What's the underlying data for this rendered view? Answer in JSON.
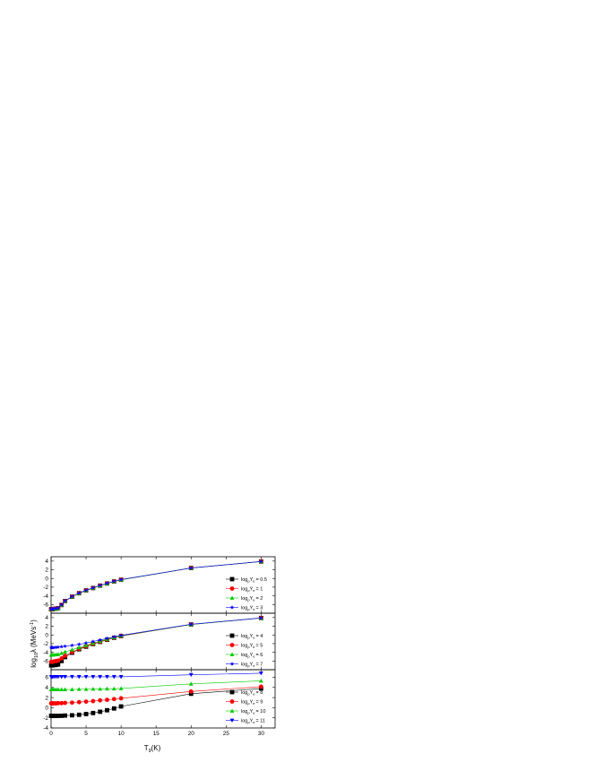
{
  "chart_data": {
    "type": "line",
    "xlabel": "T",
    "xlabel_sub": "9",
    "xlabel_unit": "(K)",
    "ylabel_prefix": "log",
    "ylabel_sub": "10",
    "ylabel_lambda": "λ",
    "ylabel_unit": "(MeVs",
    "ylabel_sup": "-1",
    "ylabel_close": ")",
    "xlim": [
      0,
      32
    ],
    "xticks": [
      "0",
      "5",
      "10",
      "15",
      "20",
      "25",
      "30"
    ],
    "legend_position": "right",
    "colors": {
      "black": "#000000",
      "red": "#ff0000",
      "green": "#00cc00",
      "blue": "#0000ff"
    },
    "x": [
      0.01,
      0.1,
      0.2,
      0.4,
      0.7,
      1,
      1.5,
      2,
      3,
      4,
      5,
      6,
      7,
      8,
      9,
      10,
      20,
      30
    ],
    "panels": [
      {
        "ylim": [
          -8,
          5
        ],
        "yticks": [
          "4",
          "2",
          "0",
          "-2",
          "-4",
          "-6"
        ],
        "series": [
          {
            "name_prefix": "log",
            "name_sub": "ρ",
            "name_mid": "Y",
            "name_sub2": "e",
            "name_suffix": "= 0.5",
            "marker": "square",
            "color": "black",
            "y": [
              -7.1,
              -7.1,
              -7.1,
              -7.0,
              -6.95,
              -6.85,
              -6.1,
              -5.2,
              -4.2,
              -3.4,
              -2.75,
              -2.2,
              -1.65,
              -1.15,
              -0.7,
              -0.3,
              2.4,
              3.9
            ]
          },
          {
            "name_prefix": "log",
            "name_sub": "ρ",
            "name_mid": "Y",
            "name_sub2": "e",
            "name_suffix": "= 1",
            "marker": "circle",
            "color": "red",
            "y": [
              -7.1,
              -7.1,
              -7.1,
              -7.0,
              -6.95,
              -6.85,
              -6.1,
              -5.2,
              -4.2,
              -3.4,
              -2.75,
              -2.2,
              -1.65,
              -1.15,
              -0.7,
              -0.3,
              2.4,
              3.9
            ]
          },
          {
            "name_prefix": "log",
            "name_sub": "ρ",
            "name_mid": "Y",
            "name_sub2": "e",
            "name_suffix": "= 2",
            "marker": "triangle-up",
            "color": "green",
            "y": [
              -7.1,
              -7.1,
              -7.1,
              -7.0,
              -6.95,
              -6.85,
              -6.1,
              -5.2,
              -4.2,
              -3.4,
              -2.75,
              -2.2,
              -1.65,
              -1.15,
              -0.7,
              -0.3,
              2.4,
              3.9
            ]
          },
          {
            "name_prefix": "log",
            "name_sub": "ρ",
            "name_mid": "Y",
            "name_sub2": "e",
            "name_suffix": "= 3",
            "marker": "star",
            "color": "blue",
            "y": [
              -7.05,
              -7.05,
              -7.05,
              -6.95,
              -6.9,
              -6.8,
              -6.05,
              -5.15,
              -4.15,
              -3.35,
              -2.7,
              -2.15,
              -1.6,
              -1.1,
              -0.65,
              -0.25,
              2.4,
              3.9
            ]
          }
        ]
      },
      {
        "ylim": [
          -8,
          5
        ],
        "yticks": [
          "4",
          "2",
          "0",
          "-2",
          "-4",
          "-6"
        ],
        "series": [
          {
            "name_prefix": "log",
            "name_sub": "ρ",
            "name_mid": "Y",
            "name_sub2": "e",
            "name_suffix": "= 4",
            "marker": "square",
            "color": "black",
            "y": [
              -7.0,
              -7.0,
              -7.0,
              -6.95,
              -6.9,
              -6.8,
              -6.0,
              -5.1,
              -4.1,
              -3.3,
              -2.7,
              -2.1,
              -1.6,
              -1.1,
              -0.65,
              -0.25,
              2.4,
              3.9
            ]
          },
          {
            "name_prefix": "log",
            "name_sub": "ρ",
            "name_mid": "Y",
            "name_sub2": "e",
            "name_suffix": "= 5",
            "marker": "circle",
            "color": "red",
            "y": [
              -6.2,
              -6.2,
              -6.2,
              -6.1,
              -6.0,
              -5.9,
              -5.4,
              -4.8,
              -3.95,
              -3.2,
              -2.6,
              -2.05,
              -1.55,
              -1.05,
              -0.6,
              -0.2,
              2.4,
              3.9
            ]
          },
          {
            "name_prefix": "log",
            "name_sub": "ρ",
            "name_mid": "Y",
            "name_sub2": "e",
            "name_suffix": "= 6",
            "marker": "triangle-up",
            "color": "green",
            "y": [
              -4.6,
              -4.6,
              -4.6,
              -4.55,
              -4.5,
              -4.45,
              -4.2,
              -3.9,
              -3.4,
              -2.9,
              -2.4,
              -1.9,
              -1.45,
              -0.95,
              -0.55,
              -0.15,
              2.4,
              3.9
            ]
          },
          {
            "name_prefix": "log",
            "name_sub": "ρ",
            "name_mid": "Y",
            "name_sub2": "e",
            "name_suffix": "= 7",
            "marker": "star",
            "color": "blue",
            "y": [
              -2.9,
              -2.9,
              -2.9,
              -2.9,
              -2.85,
              -2.8,
              -2.7,
              -2.6,
              -2.4,
              -2.15,
              -1.85,
              -1.5,
              -1.15,
              -0.8,
              -0.45,
              -0.1,
              2.45,
              3.9
            ]
          }
        ]
      },
      {
        "ylim": [
          -4,
          7.5
        ],
        "yticks": [
          "6",
          "4",
          "2",
          "0",
          "-2",
          "-4"
        ],
        "series": [
          {
            "name_prefix": "log",
            "name_sub": "ρ",
            "name_mid": "Y",
            "name_sub2": "e",
            "name_suffix": "= 8",
            "marker": "square",
            "color": "black",
            "y": [
              -1.6,
              -1.6,
              -1.6,
              -1.6,
              -1.6,
              -1.6,
              -1.6,
              -1.55,
              -1.5,
              -1.4,
              -1.25,
              -1.05,
              -0.8,
              -0.5,
              -0.15,
              0.25,
              2.75,
              3.8
            ]
          },
          {
            "name_prefix": "log",
            "name_sub": "ρ",
            "name_mid": "Y",
            "name_sub2": "e",
            "name_suffix": "= 9",
            "marker": "circle",
            "color": "red",
            "y": [
              0.85,
              0.85,
              0.85,
              0.85,
              0.85,
              0.9,
              0.9,
              0.95,
              1.0,
              1.1,
              1.2,
              1.3,
              1.45,
              1.55,
              1.7,
              1.85,
              3.2,
              4.15
            ]
          },
          {
            "name_prefix": "log",
            "name_sub": "ρ",
            "name_mid": "Y",
            "name_sub2": "e",
            "name_suffix": "= 10",
            "marker": "triangle-up",
            "color": "green",
            "y": [
              3.6,
              3.6,
              3.6,
              3.6,
              3.6,
              3.6,
              3.6,
              3.6,
              3.6,
              3.65,
              3.65,
              3.7,
              3.7,
              3.75,
              3.75,
              3.8,
              4.7,
              5.3
            ]
          },
          {
            "name_prefix": "log",
            "name_sub": "ρ",
            "name_mid": "Y",
            "name_sub2": "e",
            "name_suffix": "= 11",
            "marker": "triangle-down",
            "color": "blue",
            "y": [
              6.1,
              6.1,
              6.1,
              6.1,
              6.1,
              6.1,
              6.1,
              6.1,
              6.1,
              6.1,
              6.1,
              6.1,
              6.1,
              6.1,
              6.1,
              6.1,
              6.5,
              6.8
            ]
          }
        ]
      }
    ]
  }
}
